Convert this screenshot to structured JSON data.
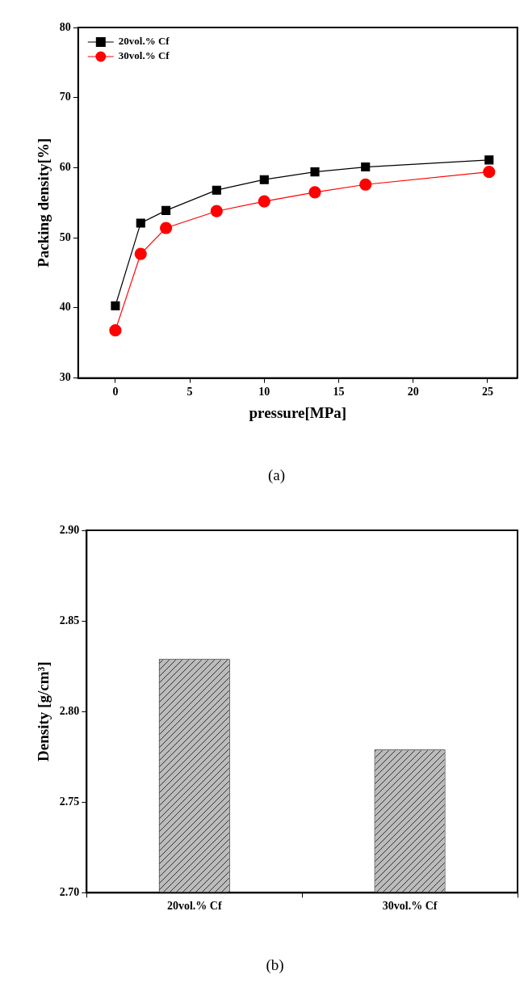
{
  "chart_data": [
    {
      "type": "line",
      "title": "(a)",
      "x_label": "pressure[MPa]",
      "y_label": "Packing density[%]",
      "x": [
        0,
        1.7,
        3.4,
        6.8,
        10,
        13.4,
        16.8,
        25.1
      ],
      "series": [
        {
          "name": "20vol.% Cf",
          "color": "#000000",
          "marker": "square",
          "line_style": "solid",
          "values": [
            40.3,
            52.1,
            53.9,
            56.8,
            58.3,
            59.4,
            60.1,
            61.1
          ]
        },
        {
          "name": "30vol.% Cf",
          "color": "#ff0000",
          "marker": "circle",
          "line_style": "solid",
          "values": [
            36.8,
            47.7,
            51.4,
            53.8,
            55.2,
            56.5,
            57.6,
            59.4
          ]
        }
      ],
      "xlim": [
        -2.5,
        27
      ],
      "xticks": [
        0,
        5,
        10,
        15,
        20,
        25
      ],
      "ylim": [
        30,
        80
      ],
      "yticks": [
        30,
        40,
        50,
        60,
        70,
        80
      ],
      "grid": false,
      "legend": "upper left"
    },
    {
      "type": "bar",
      "title": "(b)",
      "y_label": "Density [g/cm³]",
      "categories": [
        "20vol.% Cf",
        "30vol.% Cf"
      ],
      "values": [
        2.829,
        2.779
      ],
      "color": "#bbbbbb",
      "ylim": [
        2.7,
        2.9
      ],
      "yticks": [
        {
          "value": 2.7,
          "label": "2.70"
        },
        {
          "value": 2.75,
          "label": "2.75"
        },
        {
          "value": 2.8,
          "label": "2.80"
        },
        {
          "value": 2.85,
          "label": "2.85"
        },
        {
          "value": 2.9,
          "label": "2.90"
        }
      ],
      "grid": false
    }
  ]
}
